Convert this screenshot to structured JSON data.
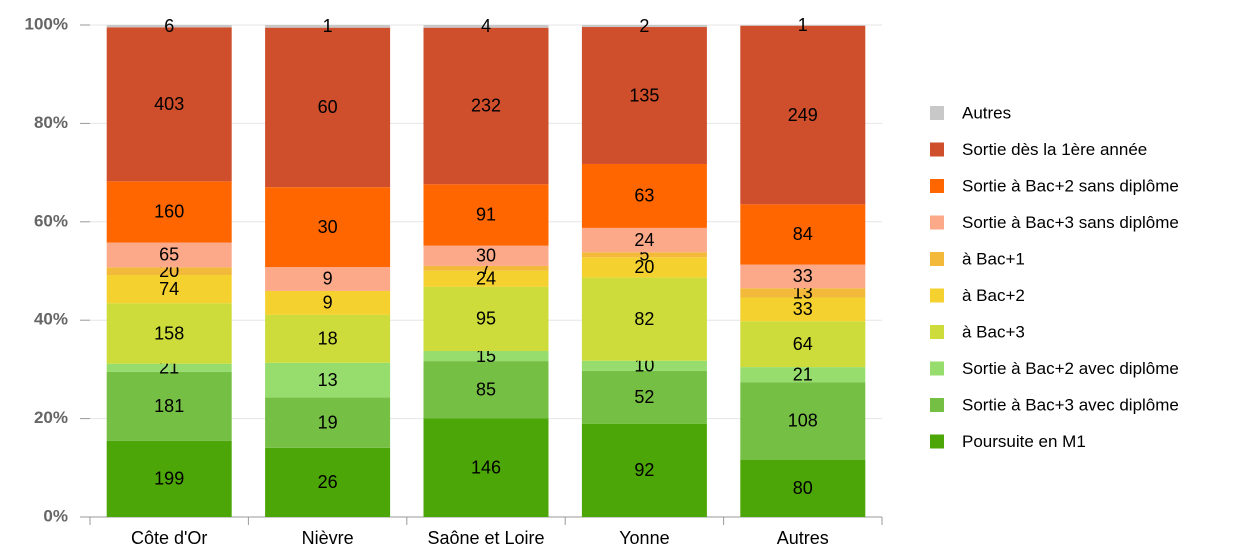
{
  "chart_data": {
    "type": "bar",
    "stacking": "percent",
    "categories": [
      "Côte d'Or",
      "Nièvre",
      "Saône et Loire",
      "Yonne",
      "Autres"
    ],
    "ylim": [
      0,
      100
    ],
    "yticks": [
      {
        "value": 0,
        "label": "0%"
      },
      {
        "value": 20,
        "label": "20%"
      },
      {
        "value": 40,
        "label": "40%"
      },
      {
        "value": 60,
        "label": "60%"
      },
      {
        "value": 80,
        "label": "80%"
      },
      {
        "value": 100,
        "label": "100%"
      }
    ],
    "grid": true,
    "legend": "right",
    "series": [
      {
        "name": "Poursuite en M1",
        "color": "#4ca608",
        "values": [
          199,
          26,
          146,
          92,
          80
        ]
      },
      {
        "name": "Sortie à Bac+3 avec diplôme",
        "color": "#76bf45",
        "values": [
          181,
          19,
          85,
          52,
          108
        ]
      },
      {
        "name": "Sortie à Bac+2 avec diplôme",
        "color": "#96dd6e",
        "values": [
          21,
          13,
          15,
          10,
          21
        ]
      },
      {
        "name": "à Bac+3",
        "color": "#cddc3a",
        "values": [
          158,
          18,
          95,
          82,
          64
        ]
      },
      {
        "name": "à Bac+2",
        "color": "#f5d130",
        "values": [
          74,
          9,
          24,
          20,
          33
        ]
      },
      {
        "name": "à Bac+1",
        "color": "#f2b93b",
        "values": [
          20,
          null,
          7,
          5,
          13
        ]
      },
      {
        "name": "Sortie à Bac+3 sans diplôme",
        "color": "#fca98a",
        "values": [
          65,
          9,
          30,
          24,
          33
        ]
      },
      {
        "name": "Sortie à Bac+2 sans diplôme",
        "color": "#ff6600",
        "values": [
          160,
          30,
          91,
          63,
          84
        ]
      },
      {
        "name": "Sortie dès la 1ère année",
        "color": "#cf4f2c",
        "values": [
          403,
          60,
          232,
          135,
          249
        ]
      },
      {
        "name": "Autres",
        "color": "#c8c8c8",
        "values": [
          6,
          1,
          4,
          2,
          1
        ]
      }
    ]
  }
}
